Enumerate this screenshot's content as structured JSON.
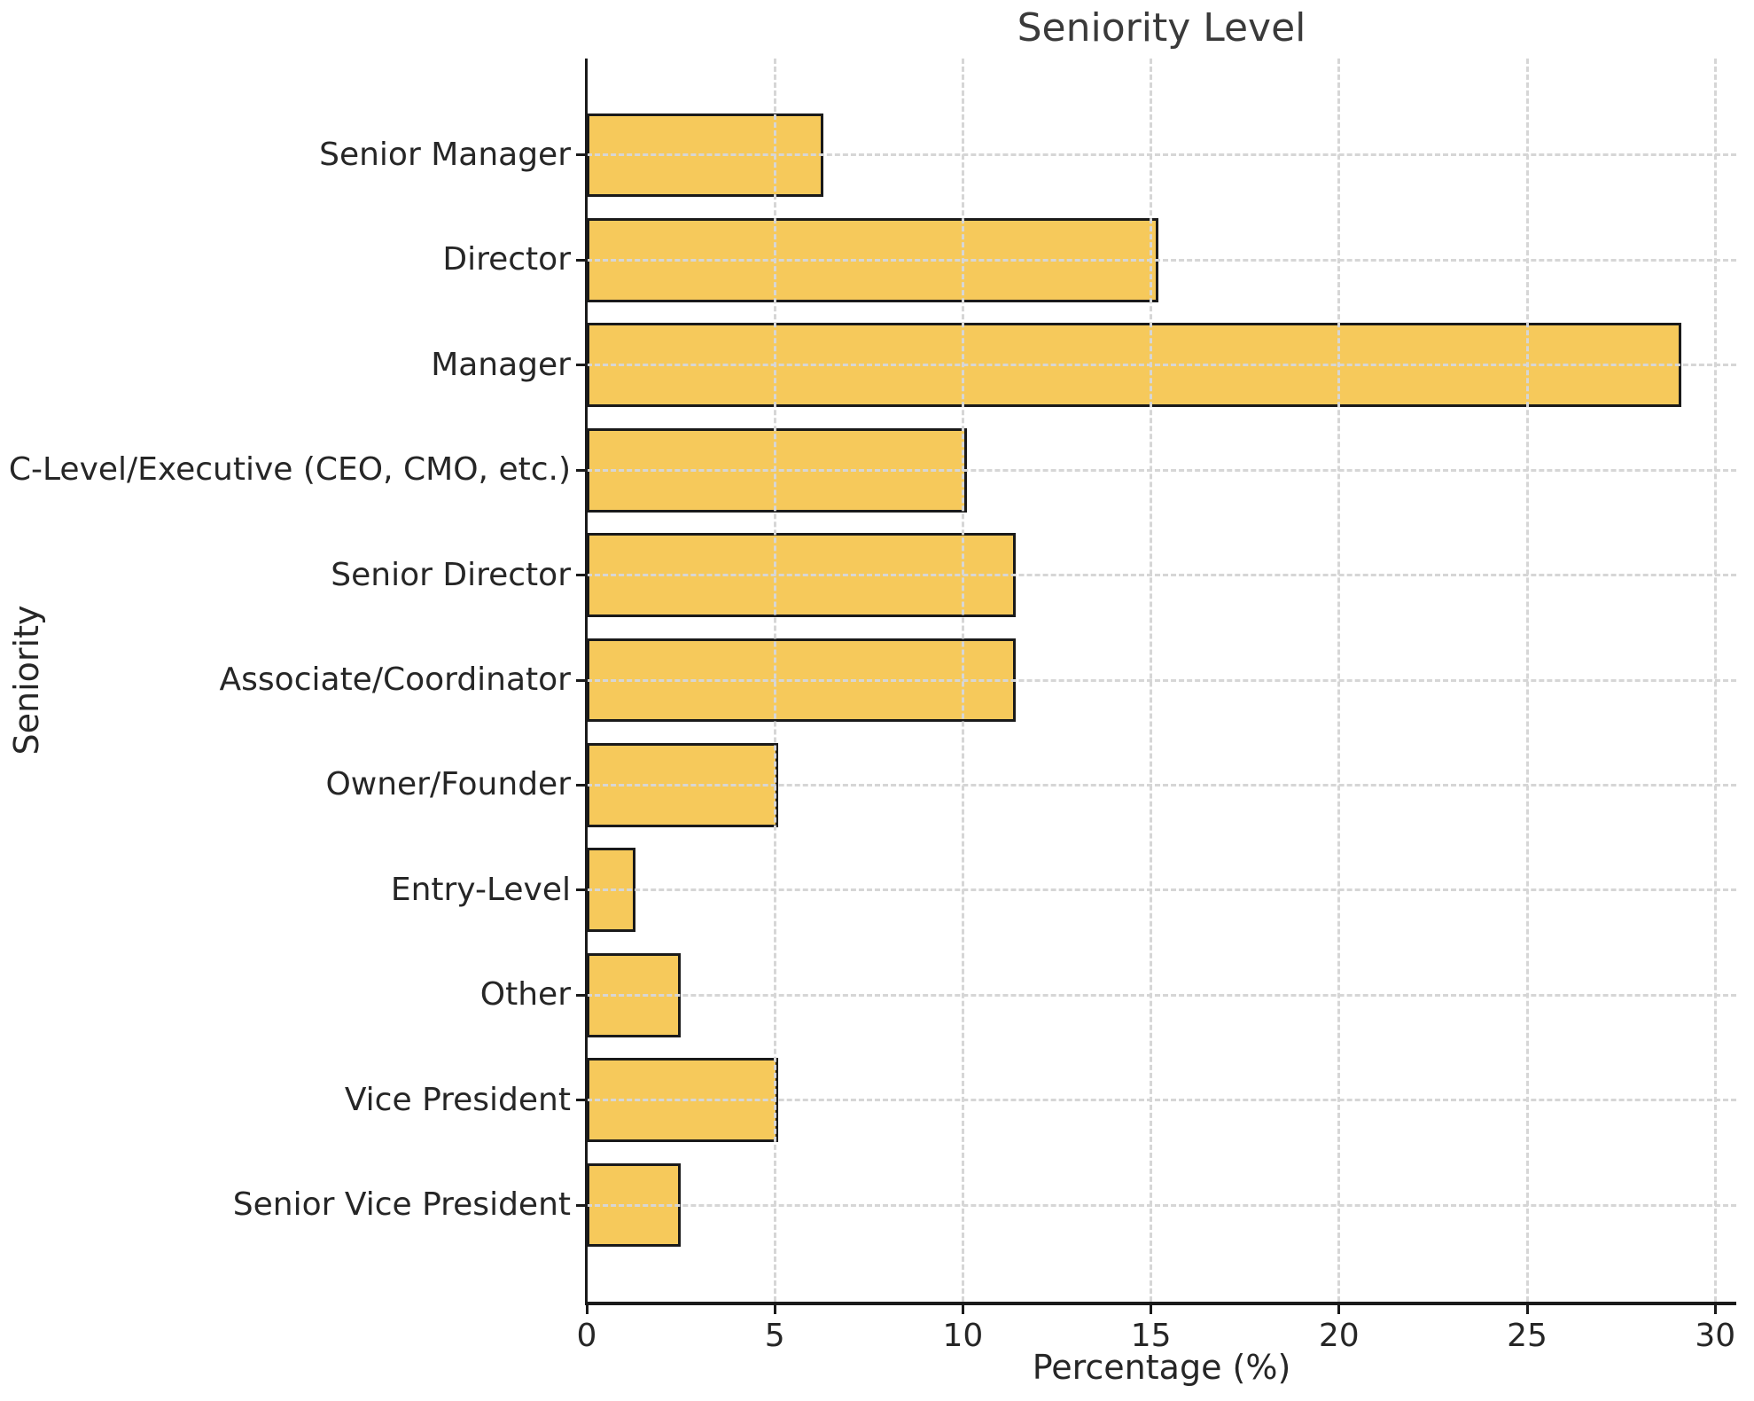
{
  "title": "Seniority Level",
  "axes": {
    "xlabel": "Percentage (%)",
    "ylabel": "Seniority"
  },
  "colors": {
    "bar_fill": "#F6C95B",
    "bar_edge": "#1a1a1a",
    "grid": "#d6d6d6",
    "spine": "#1a1a1a",
    "text": "#262626",
    "title_text": "#3a3a3a",
    "background": "#ffffff"
  },
  "chart_data": {
    "type": "bar",
    "orientation": "horizontal",
    "title": "Seniority Level",
    "xlabel": "Percentage (%)",
    "ylabel": "Seniority",
    "categories": [
      "Senior Manager",
      "Director",
      "Manager",
      "C-Level/Executive (CEO, CMO, etc.)",
      "Senior Director",
      "Associate/Coordinator",
      "Owner/Founder",
      "Entry-Level",
      "Other",
      "Vice President",
      "Senior Vice President"
    ],
    "values": [
      6.3,
      15.2,
      29.1,
      10.1,
      11.4,
      11.4,
      5.1,
      1.3,
      2.5,
      5.1,
      2.5
    ],
    "x_ticks": [
      0,
      5,
      10,
      15,
      20,
      25,
      30
    ],
    "xlim": [
      0,
      30.56
    ],
    "grid": true,
    "grid_style": "dashed",
    "legend": false,
    "bar_height_fraction": 0.8,
    "value_unit": "%"
  }
}
